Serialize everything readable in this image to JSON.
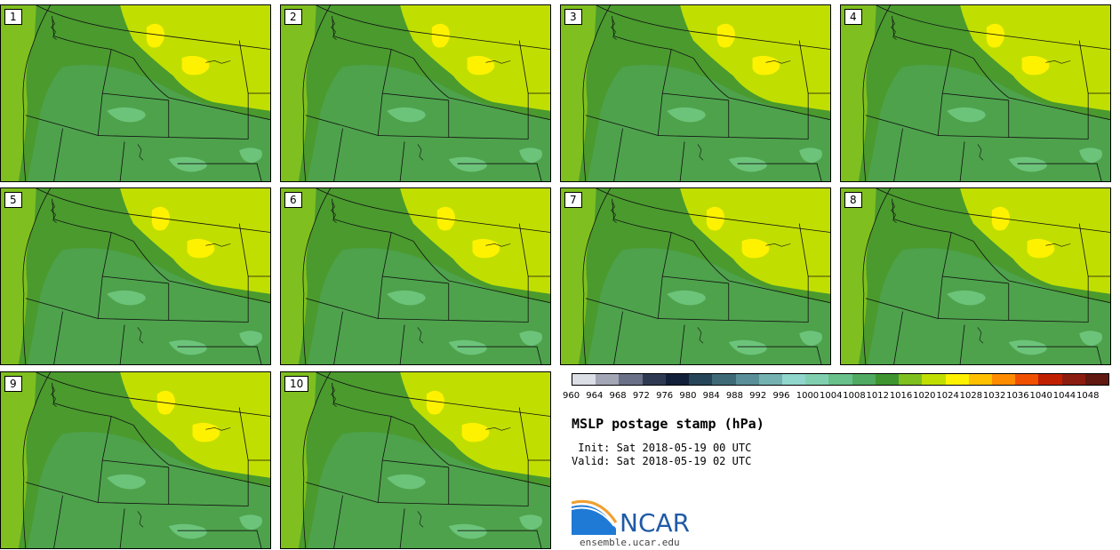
{
  "panels": [
    {
      "label": "1"
    },
    {
      "label": "2"
    },
    {
      "label": "3"
    },
    {
      "label": "4"
    },
    {
      "label": "5"
    },
    {
      "label": "6"
    },
    {
      "label": "7"
    },
    {
      "label": "8"
    },
    {
      "label": "9"
    },
    {
      "label": "10"
    }
  ],
  "colorbar": {
    "ticks": [
      "960",
      "964",
      "968",
      "972",
      "976",
      "980",
      "984",
      "988",
      "992",
      "996",
      "1000",
      "1004",
      "1008",
      "1012",
      "1016",
      "1020",
      "1024",
      "1028",
      "1032",
      "1036",
      "1040",
      "1044",
      "1048"
    ],
    "colors": [
      "#dcdee6",
      "#a3a6b5",
      "#6a7088",
      "#2f3a52",
      "#12203a",
      "#264558",
      "#3e6a78",
      "#5a8f9a",
      "#74b2b2",
      "#8fd6cc",
      "#80d0b0",
      "#68c08a",
      "#50aa62",
      "#3e9530",
      "#7fbf1f",
      "#c0df00",
      "#fff200",
      "#ffc000",
      "#ff8c00",
      "#f05000",
      "#c02000",
      "#8c1c10",
      "#601810"
    ]
  },
  "title": "MSLP postage stamp (hPa)",
  "init_line": " Init: Sat 2018-05-19 00 UTC",
  "valid_line": "Valid: Sat 2018-05-19 02 UTC",
  "logo": {
    "name": "NCAR",
    "url": "ensemble.ucar.edu"
  },
  "map_colors": {
    "c1016": "#7fbf1f",
    "c1012": "#4a9a2e",
    "c1008": "#4ea24c",
    "c1004": "#6cc47a",
    "c1020": "#c0df00",
    "c1024": "#fff200"
  }
}
